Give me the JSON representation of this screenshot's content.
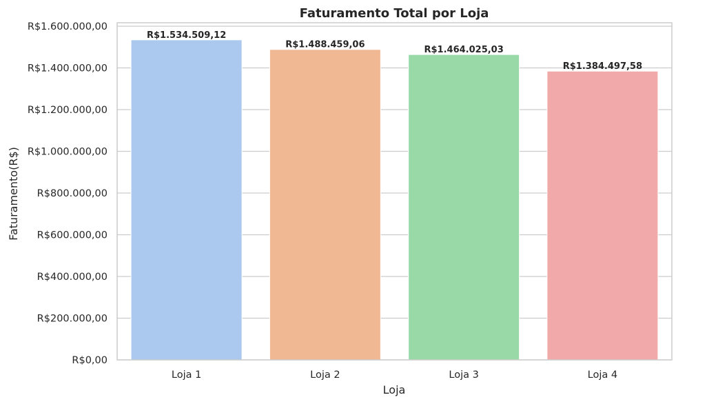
{
  "chart_data": {
    "type": "bar",
    "title": "Faturamento Total por Loja",
    "xlabel": "Loja",
    "ylabel": "Faturamento(R$)",
    "categories": [
      "Loja 1",
      "Loja 2",
      "Loja 3",
      "Loja 4"
    ],
    "values": [
      1534509.12,
      1488459.06,
      1464025.03,
      1384497.58
    ],
    "data_labels": [
      "R$1.534.509,12",
      "R$1.488.459,06",
      "R$1.464.025,03",
      "R$1.384.497,58"
    ],
    "colors": [
      "#abc9ee",
      "#f1b894",
      "#99d9a8",
      "#f2a9a9"
    ],
    "ylim": [
      0,
      1600000
    ],
    "yticks": [
      0,
      200000,
      400000,
      600000,
      800000,
      1000000,
      1200000,
      1400000,
      1600000
    ],
    "ytick_labels": [
      "R$0,00",
      "R$200.000,00",
      "R$400.000,00",
      "R$600.000,00",
      "R$800.000,00",
      "R$1.000.000,00",
      "R$1.200.000,00",
      "R$1.400.000,00",
      "R$1.600.000,00"
    ],
    "grid": true,
    "grid_axis": "y",
    "legend": "none"
  }
}
